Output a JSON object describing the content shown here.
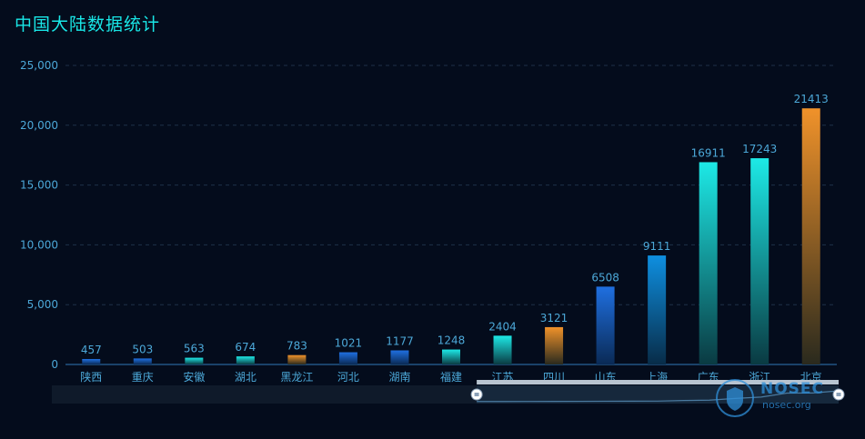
{
  "chart_data": {
    "type": "bar",
    "title": "中国大陆数据统计",
    "categories": [
      "陕西",
      "重庆",
      "安徽",
      "湖北",
      "黑龙江",
      "河北",
      "湖南",
      "福建",
      "江苏",
      "四川",
      "山东",
      "上海",
      "广东",
      "浙江",
      "北京"
    ],
    "values": [
      457,
      503,
      563,
      674,
      783,
      1021,
      1177,
      1248,
      2404,
      3121,
      6508,
      9111,
      16911,
      17243,
      21413
    ],
    "bar_styles": [
      "blue",
      "blue",
      "teal",
      "teal",
      "orange",
      "blue",
      "blue",
      "teal",
      "teal",
      "orange",
      "blue",
      "blue",
      "teal",
      "teal",
      "orange"
    ],
    "ylim": [
      0,
      25000
    ],
    "yticks": [
      0,
      5000,
      10000,
      15000,
      20000,
      25000
    ],
    "ytick_labels": [
      "0",
      "5,000",
      "10,000",
      "15,000",
      "20,000",
      "25,000"
    ],
    "grid": true,
    "xlabel": "",
    "ylabel": "",
    "data_zoom": {
      "start": 0.54,
      "end": 1.0
    },
    "colors": {
      "blue": [
        "#1f6fe0",
        "#0a2a55"
      ],
      "cyan": [
        "#0e8fe0",
        "#082c48"
      ],
      "teal": [
        "#1de9e6",
        "#0a3a42"
      ],
      "orange": [
        "#f0922a",
        "#2a2a1e"
      ],
      "label": "#4ca8d8",
      "axis": "#2f78b8",
      "grid": "#1e3048"
    }
  },
  "watermark": {
    "text": "NOSEC",
    "subtext": "nosec.org"
  }
}
